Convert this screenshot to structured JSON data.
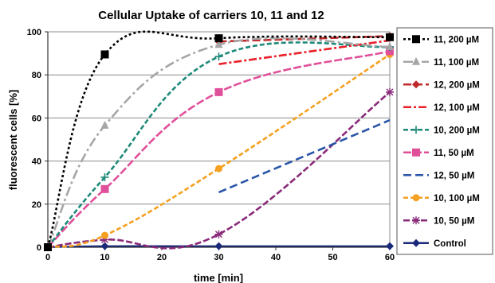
{
  "chart_data": {
    "type": "line",
    "title": "Cellular Uptake of carriers 10, 11 and 12",
    "xlabel": "time [min]",
    "ylabel": "fluorescent cells [%]",
    "xlim": [
      0,
      60
    ],
    "ylim": [
      0,
      100
    ],
    "x_ticks": [
      0,
      10,
      20,
      30,
      40,
      50,
      60
    ],
    "y_ticks": [
      0,
      20,
      40,
      60,
      80,
      100
    ],
    "grid": "horizontal",
    "legend_position": "right",
    "series": [
      {
        "name": "11, 200 µM",
        "color": "#000000",
        "dash": "3,3",
        "marker": "square",
        "x": [
          0,
          10,
          30,
          60
        ],
        "values": [
          0,
          89.5,
          97,
          97.5
        ]
      },
      {
        "name": "11, 100 µM",
        "color": "#a6a6a6",
        "dash": "12,4,3,4",
        "marker": "triangle",
        "x": [
          0,
          10,
          30,
          60
        ],
        "values": [
          0,
          56.5,
          94,
          93
        ]
      },
      {
        "name": "12, 200 µM",
        "color": "#c0282a",
        "dash": "10,4",
        "marker": "diamond",
        "x": [
          30,
          60
        ],
        "values": [
          95.5,
          98
        ]
      },
      {
        "name": "12, 100 µM",
        "color": "#e8202a",
        "dash": "10,3,3,3",
        "marker": "none",
        "x": [
          30,
          60
        ],
        "values": [
          85,
          96
        ]
      },
      {
        "name": "10, 200 µM",
        "color": "#1e8a7a",
        "dash": "6,3",
        "marker": "plus",
        "x": [
          0,
          10,
          30,
          60
        ],
        "values": [
          0,
          32.5,
          88.5,
          93
        ]
      },
      {
        "name": "11, 50 µM",
        "color": "#e0509a",
        "dash": "10,3",
        "marker": "square",
        "x": [
          0,
          10,
          30,
          60
        ],
        "values": [
          0,
          27,
          72,
          91
        ]
      },
      {
        "name": "12, 50 µM",
        "color": "#2a56a8",
        "dash": "10,5",
        "marker": "none",
        "x": [
          30,
          60
        ],
        "values": [
          25.5,
          59
        ]
      },
      {
        "name": "10, 100 µM",
        "color": "#f4a020",
        "dash": "6,3",
        "marker": "circle",
        "x": [
          0,
          10,
          30,
          60
        ],
        "values": [
          0,
          5.5,
          36.5,
          89.5
        ]
      },
      {
        "name": "10, 50 µM",
        "color": "#8a2a7a",
        "dash": "8,3",
        "marker": "star",
        "x": [
          0,
          10,
          30,
          60
        ],
        "values": [
          0,
          3.5,
          6,
          72
        ]
      },
      {
        "name": "Control",
        "color": "#1a2a7a",
        "dash": "",
        "marker": "diamond",
        "x": [
          0,
          10,
          30,
          60
        ],
        "values": [
          0,
          0.5,
          0.5,
          0.5
        ]
      }
    ]
  }
}
